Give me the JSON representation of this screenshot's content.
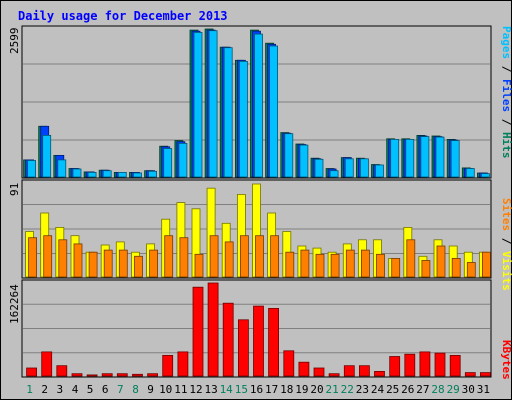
{
  "chart_data": [
    {
      "panel": "top",
      "type": "bar",
      "title": "Daily usage for December 2013",
      "categories": [
        "1",
        "2",
        "3",
        "4",
        "5",
        "6",
        "7",
        "8",
        "9",
        "10",
        "11",
        "12",
        "13",
        "14",
        "15",
        "16",
        "17",
        "18",
        "19",
        "20",
        "21",
        "22",
        "23",
        "24",
        "25",
        "26",
        "27",
        "28",
        "29",
        "30",
        "31"
      ],
      "max_label": "2599",
      "ylim": [
        0,
        2599
      ],
      "grid": true,
      "legend": [
        "Pages",
        "Files",
        "Hits"
      ],
      "legend_separator": "/",
      "series": [
        {
          "name": "Hits",
          "color": "#00805c",
          "values": [
            300,
            890,
            380,
            150,
            90,
            120,
            80,
            80,
            110,
            540,
            640,
            2580,
            2599,
            2280,
            2050,
            2580,
            2350,
            780,
            580,
            330,
            150,
            340,
            330,
            220,
            670,
            670,
            730,
            720,
            660,
            160,
            70
          ]
        },
        {
          "name": "Files",
          "color": "#0040ff",
          "values": [
            300,
            890,
            380,
            150,
            90,
            120,
            80,
            80,
            110,
            530,
            620,
            2560,
            2580,
            2280,
            2050,
            2560,
            2330,
            770,
            570,
            320,
            140,
            340,
            320,
            210,
            660,
            660,
            720,
            710,
            650,
            150,
            70
          ]
        },
        {
          "name": "Pages",
          "color": "#00c0ff",
          "values": [
            290,
            730,
            300,
            140,
            80,
            110,
            80,
            70,
            100,
            500,
            590,
            2540,
            2570,
            2270,
            2030,
            2510,
            2300,
            760,
            560,
            310,
            110,
            320,
            320,
            210,
            660,
            660,
            710,
            700,
            640,
            150,
            60
          ]
        }
      ]
    },
    {
      "panel": "middle",
      "type": "bar",
      "categories": [
        "1",
        "2",
        "3",
        "4",
        "5",
        "6",
        "7",
        "8",
        "9",
        "10",
        "11",
        "12",
        "13",
        "14",
        "15",
        "16",
        "17",
        "18",
        "19",
        "20",
        "21",
        "22",
        "23",
        "24",
        "25",
        "26",
        "27",
        "28",
        "29",
        "30",
        "31"
      ],
      "max_label": "91",
      "ylim": [
        0,
        91
      ],
      "grid": true,
      "legend": [
        "Sites",
        "Visits"
      ],
      "legend_separator": "/",
      "series": [
        {
          "name": "Visits",
          "color": "#ffff00",
          "values": [
            44,
            62,
            48,
            40,
            24,
            31,
            34,
            24,
            32,
            56,
            72,
            66,
            86,
            52,
            80,
            90,
            62,
            44,
            30,
            28,
            24,
            32,
            36,
            36,
            18,
            48,
            20,
            36,
            30,
            24,
            24
          ]
        },
        {
          "name": "Sites",
          "color": "#ff8000",
          "values": [
            38,
            40,
            36,
            32,
            24,
            26,
            26,
            20,
            26,
            40,
            38,
            22,
            40,
            34,
            40,
            40,
            40,
            24,
            26,
            22,
            22,
            26,
            26,
            22,
            18,
            36,
            16,
            30,
            18,
            14,
            24
          ]
        }
      ]
    },
    {
      "panel": "bottom",
      "type": "bar",
      "categories": [
        "1",
        "2",
        "3",
        "4",
        "5",
        "6",
        "7",
        "8",
        "9",
        "10",
        "11",
        "12",
        "13",
        "14",
        "15",
        "16",
        "17",
        "18",
        "19",
        "20",
        "21",
        "22",
        "23",
        "24",
        "25",
        "26",
        "27",
        "28",
        "29",
        "30",
        "31"
      ],
      "max_label": "162264",
      "ylim": [
        0,
        162264
      ],
      "grid": true,
      "legend": [
        "KBytes"
      ],
      "series": [
        {
          "name": "KBytes",
          "color": "#ff0000",
          "values": [
            14000,
            42000,
            18000,
            4000,
            2000,
            4000,
            4000,
            3000,
            4000,
            36000,
            42000,
            155000,
            162264,
            127000,
            98000,
            122000,
            118000,
            44000,
            24000,
            14000,
            4000,
            18000,
            18000,
            8000,
            34000,
            38000,
            42000,
            40000,
            36000,
            6000,
            6000
          ]
        }
      ]
    }
  ],
  "x_labels": {
    "days": [
      "1",
      "2",
      "3",
      "4",
      "5",
      "6",
      "7",
      "8",
      "9",
      "10",
      "11",
      "12",
      "13",
      "14",
      "15",
      "16",
      "17",
      "18",
      "19",
      "20",
      "21",
      "22",
      "23",
      "24",
      "25",
      "26",
      "27",
      "28",
      "29",
      "30",
      "31"
    ],
    "weekend_days": [
      "1",
      "7",
      "8",
      "14",
      "15",
      "21",
      "22",
      "28",
      "29"
    ],
    "weekday_color": "#000000",
    "weekend_color": "#00805c"
  },
  "colors": {
    "background": "#c0c0c0",
    "plot_background": "#c0c0c0",
    "title": "#0000ff",
    "grid": "#808080"
  }
}
